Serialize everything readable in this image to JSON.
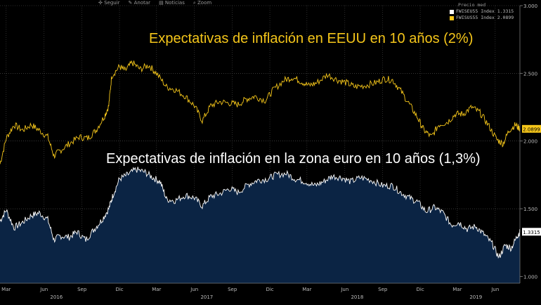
{
  "toolbar": {
    "follow_label": "Seguir",
    "annotate_label": "Anotar",
    "news_label": "Noticias",
    "zoom_label": "Zoom"
  },
  "legend": {
    "header": "Precio med",
    "items": [
      {
        "label": "FWISEU55 Index 1.3315",
        "color": "#ffffff"
      },
      {
        "label": "FWISUS55 Index 2.0899",
        "color": "#f5c61a"
      }
    ]
  },
  "annotations": {
    "us": "Expectativas de inflación en EEUU en 10 años (2%)",
    "eu": "Expectativas de inflación en la zona euro en 10 años (1,3%)"
  },
  "chart_data": {
    "type": "line",
    "title": "",
    "xlabel": "",
    "ylabel": "",
    "ylim": [
      0.95,
      3.0
    ],
    "x_range": [
      "2016-02-15",
      "2019-07-31"
    ],
    "grid": true,
    "y_ticks": [
      "1.000",
      "1.500",
      "2.000",
      "2.500",
      "3.000"
    ],
    "x_month_ticks": [
      {
        "label": "Mar",
        "date": "2016-03-01"
      },
      {
        "label": "Jun",
        "date": "2016-06-01"
      },
      {
        "label": "Sep",
        "date": "2016-09-01"
      },
      {
        "label": "Dic",
        "date": "2016-12-01"
      },
      {
        "label": "Mar",
        "date": "2017-03-01"
      },
      {
        "label": "Jun",
        "date": "2017-06-01"
      },
      {
        "label": "Sep",
        "date": "2017-09-01"
      },
      {
        "label": "Dic",
        "date": "2017-12-01"
      },
      {
        "label": "Mar",
        "date": "2018-03-01"
      },
      {
        "label": "Jun",
        "date": "2018-06-01"
      },
      {
        "label": "Sep",
        "date": "2018-09-01"
      },
      {
        "label": "Dic",
        "date": "2018-12-01"
      },
      {
        "label": "Mar",
        "date": "2019-03-01"
      },
      {
        "label": "Jun",
        "date": "2019-06-01"
      }
    ],
    "x_year_ticks": [
      {
        "label": "2016",
        "date": "2016-07-01"
      },
      {
        "label": "2017",
        "date": "2017-07-01"
      },
      {
        "label": "2018",
        "date": "2018-07-01"
      },
      {
        "label": "2019",
        "date": "2019-04-15"
      }
    ],
    "series": [
      {
        "name": "FWISUS55 Index",
        "color": "#f5c61a",
        "last_value": "2.0899",
        "points": [
          [
            "2016-02-15",
            1.83
          ],
          [
            "2016-03-01",
            2.02
          ],
          [
            "2016-03-20",
            2.12
          ],
          [
            "2016-04-10",
            2.08
          ],
          [
            "2016-05-01",
            2.12
          ],
          [
            "2016-05-20",
            2.08
          ],
          [
            "2016-06-10",
            2.03
          ],
          [
            "2016-06-25",
            1.89
          ],
          [
            "2016-07-10",
            1.93
          ],
          [
            "2016-08-01",
            1.98
          ],
          [
            "2016-08-25",
            2.03
          ],
          [
            "2016-09-15",
            2.02
          ],
          [
            "2016-10-05",
            2.08
          ],
          [
            "2016-10-25",
            2.18
          ],
          [
            "2016-11-05",
            2.26
          ],
          [
            "2016-11-12",
            2.48
          ],
          [
            "2016-12-01",
            2.55
          ],
          [
            "2016-12-15",
            2.52
          ],
          [
            "2017-01-01",
            2.58
          ],
          [
            "2017-01-20",
            2.53
          ],
          [
            "2017-02-10",
            2.56
          ],
          [
            "2017-03-01",
            2.5
          ],
          [
            "2017-03-25",
            2.4
          ],
          [
            "2017-04-15",
            2.38
          ],
          [
            "2017-05-10",
            2.33
          ],
          [
            "2017-06-01",
            2.26
          ],
          [
            "2017-06-20",
            2.15
          ],
          [
            "2017-07-10",
            2.26
          ],
          [
            "2017-08-01",
            2.29
          ],
          [
            "2017-08-25",
            2.28
          ],
          [
            "2017-09-15",
            2.27
          ],
          [
            "2017-10-05",
            2.31
          ],
          [
            "2017-10-25",
            2.33
          ],
          [
            "2017-11-20",
            2.3
          ],
          [
            "2017-12-10",
            2.38
          ],
          [
            "2018-01-05",
            2.45
          ],
          [
            "2018-01-25",
            2.47
          ],
          [
            "2018-02-15",
            2.44
          ],
          [
            "2018-03-05",
            2.41
          ],
          [
            "2018-03-25",
            2.43
          ],
          [
            "2018-04-20",
            2.49
          ],
          [
            "2018-05-15",
            2.45
          ],
          [
            "2018-06-05",
            2.43
          ],
          [
            "2018-06-25",
            2.4
          ],
          [
            "2018-07-20",
            2.41
          ],
          [
            "2018-08-15",
            2.43
          ],
          [
            "2018-09-05",
            2.46
          ],
          [
            "2018-09-25",
            2.45
          ],
          [
            "2018-10-15",
            2.37
          ],
          [
            "2018-11-05",
            2.27
          ],
          [
            "2018-11-25",
            2.17
          ],
          [
            "2018-12-10",
            2.08
          ],
          [
            "2018-12-28",
            2.03
          ],
          [
            "2019-01-15",
            2.12
          ],
          [
            "2019-02-05",
            2.14
          ],
          [
            "2019-02-25",
            2.2
          ],
          [
            "2019-03-15",
            2.2
          ],
          [
            "2019-04-05",
            2.25
          ],
          [
            "2019-04-25",
            2.21
          ],
          [
            "2019-05-15",
            2.12
          ],
          [
            "2019-06-05",
            2.01
          ],
          [
            "2019-06-20",
            1.98
          ],
          [
            "2019-07-05",
            2.08
          ],
          [
            "2019-07-20",
            2.12
          ],
          [
            "2019-07-31",
            2.09
          ]
        ]
      },
      {
        "name": "FWISEU55 Index",
        "color": "#ffffff",
        "fill": "#0b2444",
        "last_value": "1.3315",
        "points": [
          [
            "2016-02-15",
            1.41
          ],
          [
            "2016-03-01",
            1.49
          ],
          [
            "2016-03-20",
            1.36
          ],
          [
            "2016-04-10",
            1.4
          ],
          [
            "2016-05-01",
            1.45
          ],
          [
            "2016-05-20",
            1.47
          ],
          [
            "2016-06-10",
            1.42
          ],
          [
            "2016-06-25",
            1.27
          ],
          [
            "2016-07-10",
            1.3
          ],
          [
            "2016-08-01",
            1.29
          ],
          [
            "2016-08-20",
            1.33
          ],
          [
            "2016-09-10",
            1.27
          ],
          [
            "2016-10-01",
            1.35
          ],
          [
            "2016-10-20",
            1.42
          ],
          [
            "2016-11-05",
            1.5
          ],
          [
            "2016-11-15",
            1.6
          ],
          [
            "2016-12-01",
            1.72
          ],
          [
            "2016-12-20",
            1.75
          ],
          [
            "2017-01-10",
            1.79
          ],
          [
            "2017-02-01",
            1.77
          ],
          [
            "2017-02-20",
            1.73
          ],
          [
            "2017-03-10",
            1.7
          ],
          [
            "2017-03-25",
            1.57
          ],
          [
            "2017-04-15",
            1.56
          ],
          [
            "2017-05-10",
            1.6
          ],
          [
            "2017-06-01",
            1.58
          ],
          [
            "2017-06-20",
            1.52
          ],
          [
            "2017-07-10",
            1.59
          ],
          [
            "2017-08-01",
            1.61
          ],
          [
            "2017-08-25",
            1.65
          ],
          [
            "2017-09-15",
            1.62
          ],
          [
            "2017-10-10",
            1.68
          ],
          [
            "2017-11-01",
            1.71
          ],
          [
            "2017-11-25",
            1.72
          ],
          [
            "2017-12-15",
            1.75
          ],
          [
            "2018-01-10",
            1.76
          ],
          [
            "2018-02-01",
            1.72
          ],
          [
            "2018-02-25",
            1.7
          ],
          [
            "2018-03-20",
            1.67
          ],
          [
            "2018-04-10",
            1.7
          ],
          [
            "2018-05-01",
            1.74
          ],
          [
            "2018-05-25",
            1.73
          ],
          [
            "2018-06-15",
            1.7
          ],
          [
            "2018-07-10",
            1.73
          ],
          [
            "2018-08-05",
            1.71
          ],
          [
            "2018-09-01",
            1.67
          ],
          [
            "2018-09-25",
            1.67
          ],
          [
            "2018-10-15",
            1.62
          ],
          [
            "2018-11-05",
            1.58
          ],
          [
            "2018-11-25",
            1.55
          ],
          [
            "2018-12-15",
            1.48
          ],
          [
            "2019-01-05",
            1.51
          ],
          [
            "2019-01-25",
            1.47
          ],
          [
            "2019-02-15",
            1.38
          ],
          [
            "2019-03-05",
            1.4
          ],
          [
            "2019-03-25",
            1.35
          ],
          [
            "2019-04-15",
            1.37
          ],
          [
            "2019-05-05",
            1.31
          ],
          [
            "2019-05-25",
            1.24
          ],
          [
            "2019-06-10",
            1.14
          ],
          [
            "2019-06-25",
            1.23
          ],
          [
            "2019-07-10",
            1.21
          ],
          [
            "2019-07-25",
            1.3
          ],
          [
            "2019-07-31",
            1.33
          ]
        ]
      }
    ]
  }
}
